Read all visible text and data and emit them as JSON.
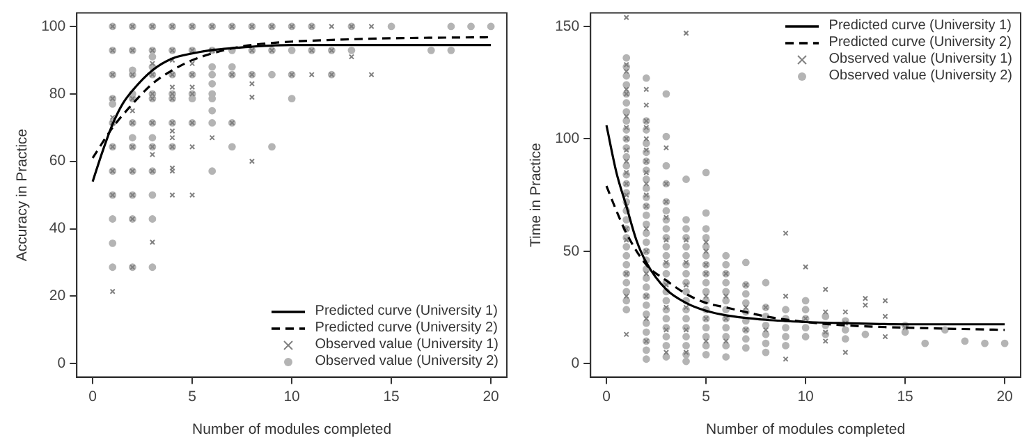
{
  "chart_data": [
    {
      "type": "scatter",
      "xlabel": "Number of modules completed",
      "ylabel": "Accuracy in Practice",
      "xlim": [
        -0.8,
        20.8
      ],
      "xticks": [
        0,
        5,
        10,
        15,
        20
      ],
      "ylim": [
        -4,
        104
      ],
      "yticks": [
        0,
        20,
        40,
        60,
        80,
        100
      ],
      "legend": "bottom right",
      "series": [
        {
          "name": "Predicted curve (University 1)",
          "type": "line",
          "color": "#000000",
          "line_style": "solid",
          "marker": "none",
          "x": [
            0,
            0.5,
            1,
            1.5,
            2,
            3,
            4,
            5,
            6,
            8,
            10,
            15,
            20
          ],
          "values": [
            54,
            63,
            71,
            77,
            81,
            87,
            90.5,
            92,
            93,
            94,
            94.5,
            94.5,
            94.5
          ]
        },
        {
          "name": "Predicted curve (University 2)",
          "type": "line",
          "color": "#000000",
          "line_style": "dashed",
          "marker": "none",
          "x": [
            0,
            1,
            2,
            3,
            4,
            5,
            6,
            7,
            8,
            10,
            12,
            15,
            20
          ],
          "values": [
            61,
            70,
            77,
            83,
            87,
            90,
            92,
            93.5,
            94.5,
            95.5,
            96,
            96.5,
            96.8
          ]
        },
        {
          "name": "Observed value (University 1)",
          "type": "scatter",
          "color": "#808080",
          "marker": "cross",
          "x": [
            1,
            1,
            1,
            1,
            1,
            1,
            1,
            1,
            1,
            1,
            2,
            2,
            2,
            2,
            2,
            2,
            2,
            2,
            2,
            2,
            2,
            3,
            3,
            3,
            3,
            3,
            3,
            3,
            3,
            3,
            3,
            3,
            4,
            4,
            4,
            4,
            4,
            4,
            4,
            4,
            4,
            4,
            4,
            4,
            4,
            4,
            5,
            5,
            5,
            5,
            5,
            5,
            5,
            5,
            5,
            6,
            6,
            6,
            7,
            7,
            7,
            8,
            8,
            8,
            8,
            8,
            8,
            9,
            9,
            10,
            10,
            11,
            11,
            11,
            12,
            12,
            12,
            13,
            13,
            14,
            14
          ],
          "values": [
            100,
            92.9,
            85.7,
            78.6,
            73,
            71.4,
            64.3,
            57.1,
            50,
            21.4,
            100,
            92.9,
            85.7,
            78.6,
            75,
            71.4,
            64.3,
            57.1,
            50,
            42.9,
            28.6,
            100,
            92.9,
            89,
            85.7,
            80,
            78.6,
            71.4,
            64.3,
            62,
            57.1,
            36,
            100,
            92.9,
            90,
            85.7,
            82,
            80,
            78.6,
            71.4,
            69,
            67,
            64.3,
            58,
            57.1,
            50,
            100,
            92.9,
            89,
            85.7,
            82,
            80,
            71.4,
            64.3,
            50,
            100,
            92.9,
            67,
            100,
            85.7,
            71.4,
            100,
            92.9,
            85.7,
            83,
            79,
            60,
            100,
            92.9,
            100,
            85.7,
            100,
            92.9,
            85.7,
            100,
            92.9,
            85.7,
            100,
            91,
            100,
            85.7
          ]
        },
        {
          "name": "Observed value (University 2)",
          "type": "scatter",
          "color": "#b4b4b4",
          "marker": "circle",
          "x": [
            1,
            1,
            1,
            1,
            1,
            1,
            1,
            1,
            1,
            1,
            1,
            1,
            2,
            2,
            2,
            2,
            2,
            2,
            2,
            2,
            2,
            2,
            2,
            2,
            2,
            3,
            3,
            3,
            3,
            3,
            3,
            3,
            3,
            3,
            3,
            3,
            3,
            3,
            3,
            4,
            4,
            4,
            4,
            4,
            4,
            4,
            5,
            5,
            5,
            5,
            5,
            5,
            6,
            6,
            6,
            6,
            6,
            6,
            6,
            6,
            6,
            6,
            7,
            7,
            7,
            7,
            7,
            7,
            8,
            8,
            8,
            9,
            9,
            9,
            9,
            10,
            10,
            10,
            10,
            11,
            11,
            12,
            12,
            13,
            13,
            15,
            17,
            18,
            18,
            19,
            20
          ],
          "values": [
            100,
            92.9,
            85.7,
            78.6,
            77,
            71.4,
            64.3,
            57.1,
            50,
            42.9,
            35.7,
            28.6,
            100,
            92.9,
            87,
            85.7,
            80,
            78.6,
            71.4,
            67,
            64.3,
            57.1,
            50,
            42.9,
            28.6,
            100,
            92.9,
            91,
            88,
            85.7,
            80,
            78.6,
            71.4,
            67,
            64.3,
            57.1,
            50,
            42.9,
            28.6,
            100,
            92.9,
            85.7,
            80,
            78.6,
            71.4,
            64.3,
            100,
            92.9,
            85.7,
            80,
            78.6,
            71.4,
            100,
            92.9,
            88,
            85.7,
            83,
            80,
            78.6,
            75,
            71.4,
            57.1,
            100,
            92.9,
            88,
            85.7,
            71.4,
            64.3,
            100,
            92.9,
            85.7,
            100,
            92.9,
            85.7,
            64.3,
            100,
            92.9,
            85.7,
            78.6,
            100,
            92.9,
            92.9,
            85.7,
            100,
            92.9,
            100,
            92.9,
            100,
            92.9,
            100,
            100
          ]
        }
      ]
    },
    {
      "type": "scatter",
      "xlabel": "Number of modules completed",
      "ylabel": "Time in Practice",
      "xlim": [
        -0.8,
        20.8
      ],
      "xticks": [
        0,
        5,
        10,
        15,
        20
      ],
      "ylim": [
        -6,
        156
      ],
      "yticks": [
        0,
        50,
        100,
        150
      ],
      "legend": "top right",
      "series": [
        {
          "name": "Predicted curve (University 1)",
          "type": "line",
          "color": "#000000",
          "line_style": "solid",
          "marker": "none",
          "x": [
            0,
            0.5,
            1,
            1.5,
            2,
            3,
            4,
            5,
            6,
            8,
            10,
            12,
            15,
            20
          ],
          "values": [
            106,
            85,
            70,
            55,
            45,
            33,
            27,
            23.5,
            21.5,
            19.5,
            18.5,
            18,
            17.5,
            17.5
          ]
        },
        {
          "name": "Predicted curve (University 2)",
          "type": "line",
          "color": "#000000",
          "line_style": "dashed",
          "marker": "none",
          "x": [
            0,
            0.5,
            1,
            2,
            3,
            4,
            5,
            6,
            8,
            10,
            12,
            15,
            20
          ],
          "values": [
            79,
            68,
            58,
            44,
            37,
            31,
            27,
            25,
            21,
            18.5,
            17,
            16,
            15
          ]
        },
        {
          "name": "Observed value (University 1)",
          "type": "scatter",
          "color": "#808080",
          "marker": "cross",
          "x": [
            1,
            1,
            1,
            1,
            1,
            1,
            1,
            1,
            1,
            1,
            1,
            1,
            1,
            1,
            1,
            1,
            1,
            1,
            1,
            2,
            2,
            2,
            2,
            2,
            2,
            2,
            2,
            2,
            2,
            2,
            2,
            2,
            2,
            2,
            2,
            2,
            3,
            3,
            3,
            3,
            3,
            3,
            3,
            3,
            3,
            3,
            4,
            4,
            4,
            4,
            4,
            4,
            4,
            5,
            5,
            5,
            5,
            5,
            5,
            5,
            6,
            6,
            6,
            6,
            7,
            7,
            7,
            8,
            8,
            9,
            9,
            9,
            10,
            10,
            11,
            11,
            11,
            11,
            12,
            12,
            12,
            13,
            13,
            14,
            14,
            14,
            15
          ],
          "values": [
            13,
            30,
            40,
            55,
            60,
            70,
            75,
            80,
            85,
            90,
            95,
            100,
            105,
            110,
            120,
            122,
            130,
            133,
            154,
            10,
            20,
            30,
            40,
            50,
            60,
            70,
            75,
            80,
            85,
            90,
            95,
            100,
            105,
            108,
            115,
            122,
            5,
            15,
            25,
            35,
            45,
            55,
            65,
            72,
            80,
            96,
            5,
            15,
            25,
            35,
            45,
            55,
            147,
            10,
            20,
            30,
            40,
            44,
            50,
            54,
            10,
            20,
            30,
            40,
            15,
            25,
            35,
            15,
            25,
            2,
            30,
            58,
            20,
            43,
            10,
            14,
            23,
            33,
            5,
            18,
            23,
            26,
            29,
            12,
            21,
            28,
            16
          ]
        },
        {
          "name": "Observed value (University 2)",
          "type": "scatter",
          "color": "#b4b4b4",
          "marker": "circle",
          "x": [
            1,
            1,
            1,
            1,
            1,
            1,
            1,
            1,
            1,
            1,
            1,
            1,
            1,
            1,
            1,
            1,
            1,
            1,
            1,
            1,
            1,
            1,
            1,
            1,
            1,
            1,
            1,
            1,
            1,
            2,
            2,
            2,
            2,
            2,
            2,
            2,
            2,
            2,
            2,
            2,
            2,
            2,
            2,
            2,
            2,
            2,
            2,
            2,
            2,
            2,
            2,
            2,
            2,
            2,
            2,
            2,
            2,
            3,
            3,
            3,
            3,
            3,
            3,
            3,
            3,
            3,
            3,
            3,
            3,
            3,
            3,
            3,
            3,
            3,
            3,
            3,
            3,
            3,
            3,
            4,
            4,
            4,
            4,
            4,
            4,
            4,
            4,
            4,
            4,
            4,
            4,
            4,
            4,
            4,
            4,
            4,
            4,
            5,
            5,
            5,
            5,
            5,
            5,
            5,
            5,
            5,
            5,
            5,
            5,
            5,
            5,
            5,
            5,
            5,
            6,
            6,
            6,
            6,
            6,
            6,
            6,
            6,
            6,
            6,
            6,
            6,
            7,
            7,
            7,
            7,
            7,
            7,
            7,
            7,
            7,
            8,
            8,
            8,
            8,
            8,
            8,
            8,
            9,
            9,
            9,
            9,
            9,
            10,
            10,
            10,
            10,
            10,
            11,
            11,
            11,
            12,
            12,
            12,
            13,
            15,
            15,
            16,
            17,
            18,
            19,
            20
          ],
          "values": [
            24,
            28,
            32,
            36,
            40,
            44,
            48,
            52,
            56,
            60,
            64,
            68,
            72,
            76,
            80,
            84,
            88,
            92,
            96,
            100,
            104,
            108,
            112,
            116,
            120,
            124,
            128,
            132,
            136,
            2,
            6,
            10,
            14,
            18,
            22,
            26,
            30,
            34,
            38,
            42,
            46,
            50,
            54,
            58,
            62,
            66,
            70,
            74,
            78,
            82,
            86,
            90,
            94,
            98,
            104,
            108,
            127,
            3,
            8,
            12,
            16,
            20,
            24,
            28,
            32,
            36,
            40,
            44,
            48,
            52,
            56,
            60,
            64,
            68,
            72,
            80,
            88,
            101,
            120,
            1,
            4,
            8,
            12,
            16,
            20,
            24,
            28,
            32,
            36,
            40,
            44,
            48,
            52,
            56,
            60,
            64,
            82,
            4,
            8,
            12,
            16,
            20,
            24,
            28,
            32,
            36,
            40,
            44,
            48,
            52,
            56,
            60,
            67,
            85,
            3,
            8,
            12,
            16,
            20,
            24,
            28,
            32,
            36,
            40,
            44,
            48,
            7,
            11,
            15,
            19,
            23,
            27,
            31,
            35,
            45,
            5,
            9,
            13,
            17,
            21,
            25,
            36,
            8,
            12,
            16,
            20,
            24,
            12,
            16,
            20,
            24,
            28,
            13,
            17,
            21,
            11,
            15,
            19,
            13,
            14,
            17,
            9,
            15,
            10,
            9,
            9
          ]
        }
      ]
    }
  ]
}
